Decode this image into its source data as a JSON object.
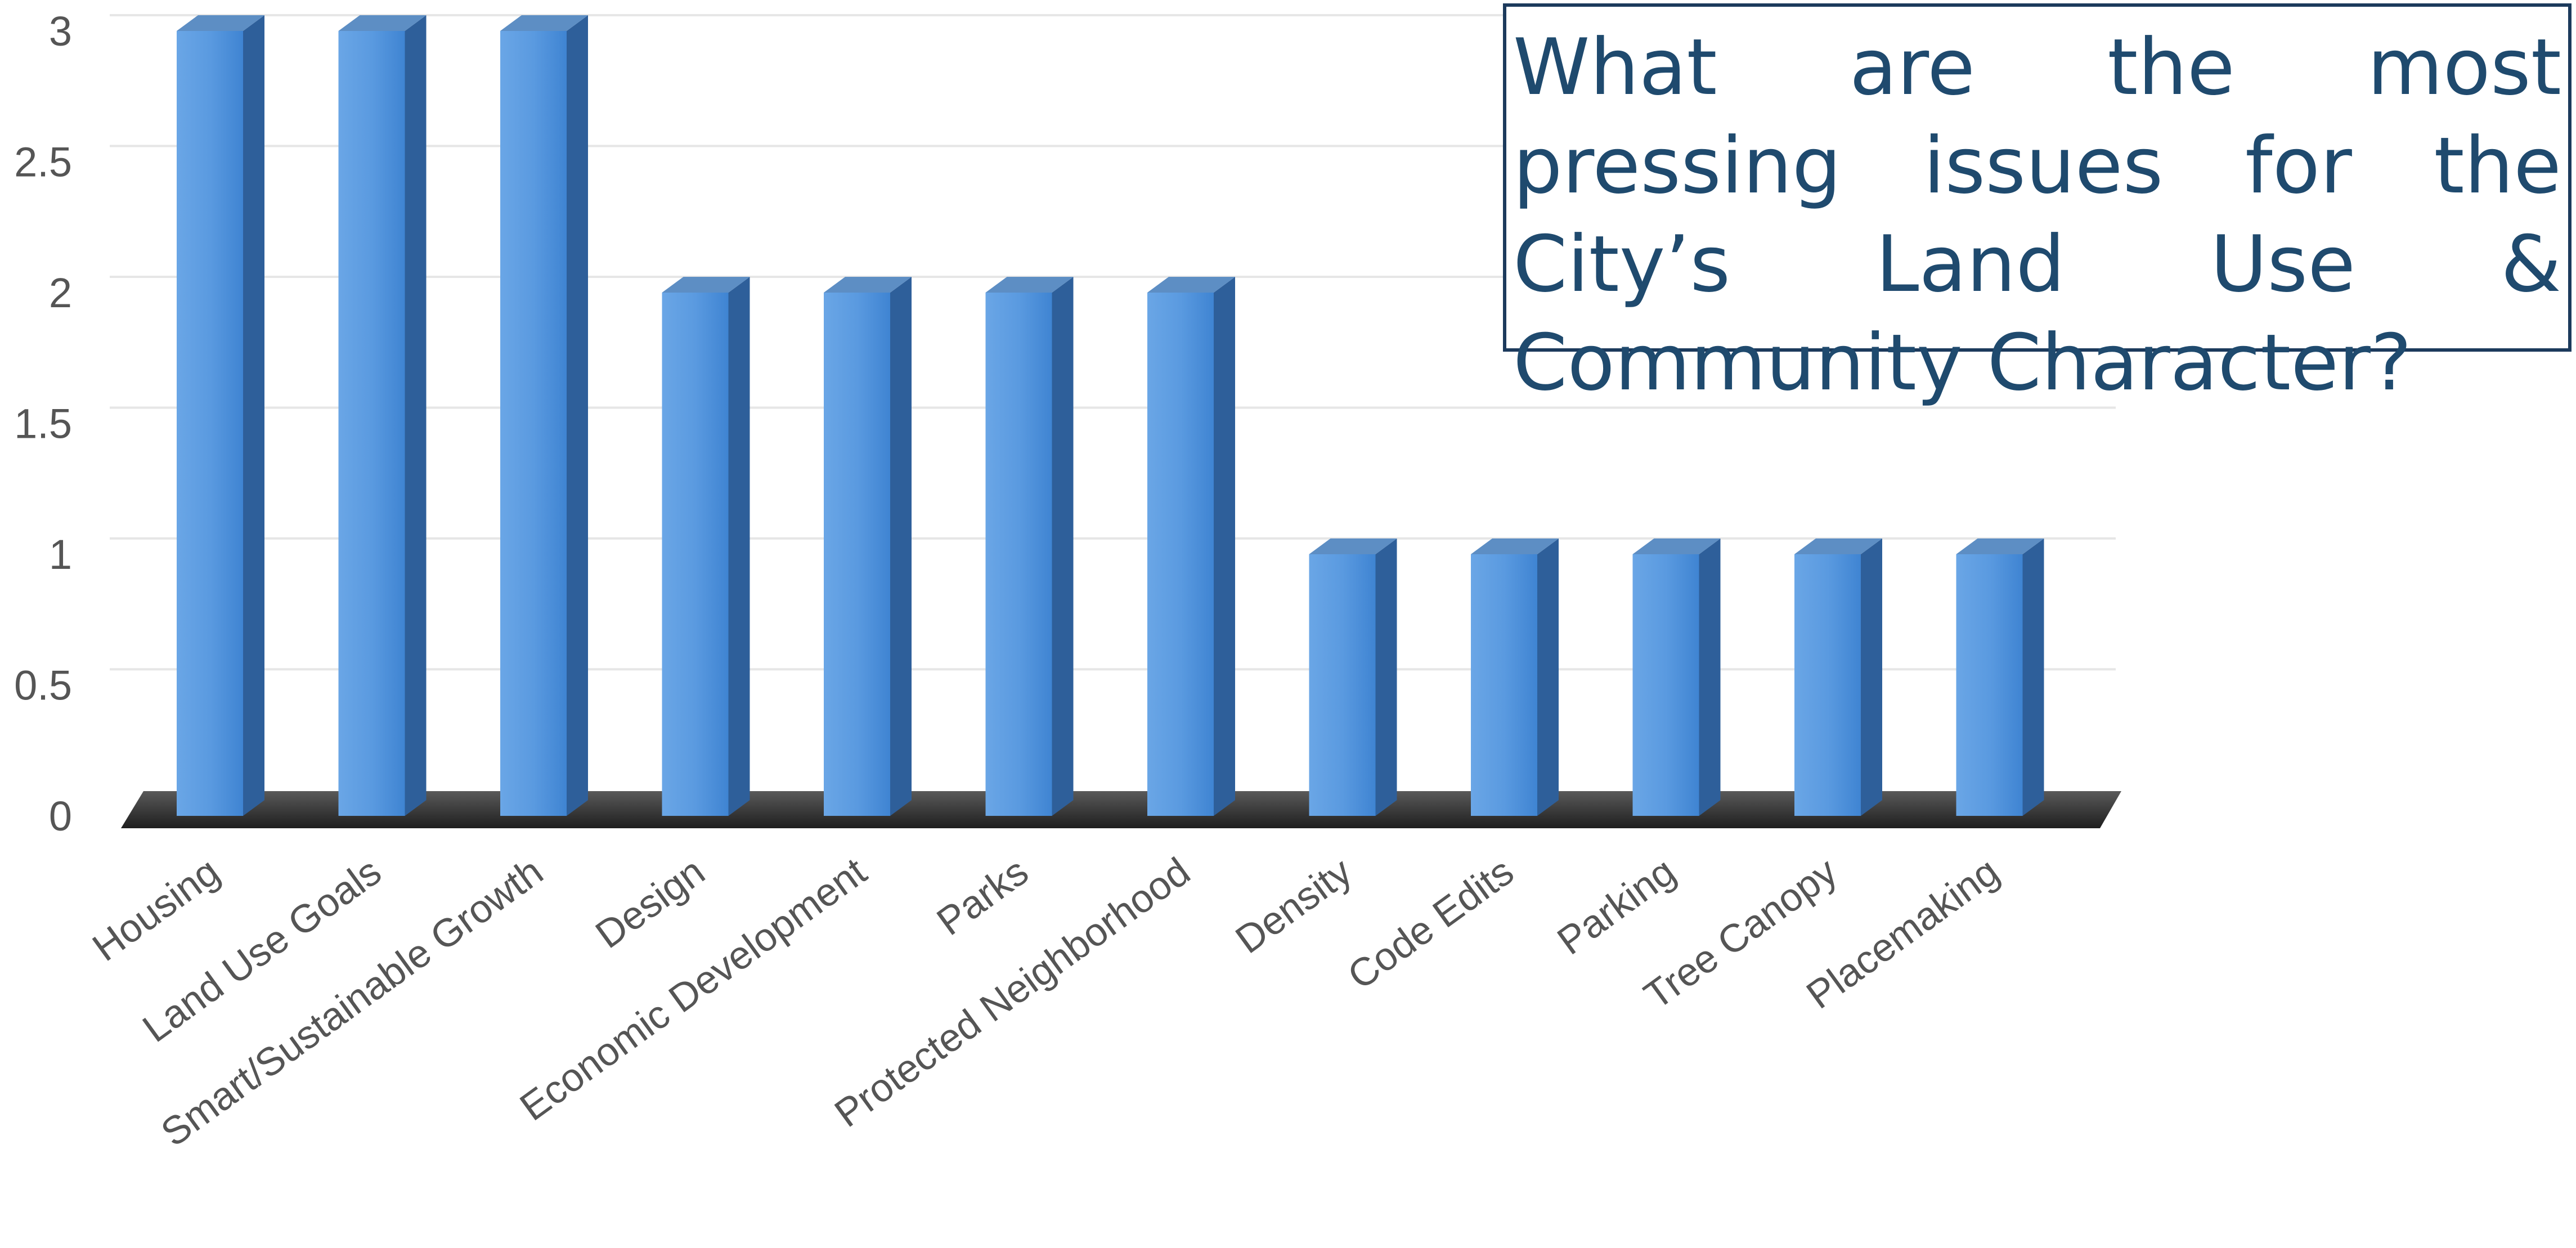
{
  "title_box": {
    "text": "What are the most pressing issues for the City’s Land Use & Community Character?"
  },
  "chart_data": {
    "type": "bar",
    "style": "3d-column",
    "title": "What are the most pressing issues for the City’s Land Use & Community Character?",
    "categories": [
      "Housing",
      "Land Use Goals",
      "Smart/Sustainable Growth",
      "Design",
      "Economic Development",
      "Parks",
      "Protected Neighborhood",
      "Density",
      "Code Edits",
      "Parking",
      "Tree Canopy",
      "Placemaking"
    ],
    "values": [
      3,
      3,
      3,
      2,
      2,
      2,
      2,
      1,
      1,
      1,
      1,
      1
    ],
    "ylim": [
      0,
      3
    ],
    "yticks": [
      "0",
      "0.5",
      "1",
      "1.5",
      "2",
      "2.5",
      "3"
    ],
    "xlabel": "",
    "ylabel": "",
    "grid": true,
    "legend": "none",
    "colors": {
      "bar_front": "#4a8fd8",
      "bar_front_light": "#6aa6e6",
      "bar_side": "#2e5f9a",
      "bar_top": "#5d8ec4",
      "floor": "#3a3a3a",
      "grid": "#e6e6e6"
    }
  }
}
